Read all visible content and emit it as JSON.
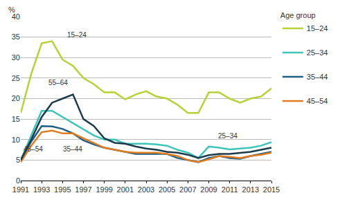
{
  "chart_data": {
    "type": "line",
    "ylabel": "%",
    "legend_title": "Age group",
    "legend": "right",
    "grid": true,
    "x": [
      1991,
      1992,
      1993,
      1994,
      1995,
      1996,
      1997,
      1998,
      1999,
      2000,
      2001,
      2002,
      2003,
      2004,
      2005,
      2006,
      2007,
      2008,
      2009,
      2010,
      2011,
      2012,
      2013,
      2014,
      2015
    ],
    "xlim": [
      1991,
      2015
    ],
    "xticks": [
      1991,
      1993,
      1995,
      1997,
      1999,
      2001,
      2003,
      2005,
      2007,
      2009,
      2011,
      2013,
      2015
    ],
    "ylim": [
      0,
      40
    ],
    "yticks": [
      0,
      5,
      10,
      15,
      20,
      25,
      30,
      35,
      40
    ],
    "series": [
      {
        "name": "15–24",
        "color": "#b5d334",
        "values": [
          16.5,
          26,
          33.5,
          34,
          29.5,
          28,
          25,
          23.5,
          21.5,
          21.5,
          19.8,
          21,
          21.8,
          20.5,
          20,
          18.5,
          16.5,
          16.5,
          21.5,
          21.5,
          20,
          19,
          20,
          20.5,
          22.5
        ]
      },
      {
        "name": "25–34",
        "color": "#3cc6b9",
        "values": [
          5,
          11,
          17,
          17,
          15.5,
          14,
          12.5,
          11,
          10,
          10,
          9,
          9,
          9,
          8.8,
          8.5,
          7.5,
          6.8,
          5.5,
          8.3,
          8,
          7.6,
          7.8,
          8,
          8.5,
          9.4
        ]
      },
      {
        "name": "35–44",
        "color": "#1e5f86",
        "values": [
          5,
          9.5,
          13.3,
          13.2,
          12.6,
          11.5,
          9.8,
          8.8,
          8,
          7.5,
          7,
          6.5,
          6.5,
          6.5,
          6.5,
          5.5,
          5,
          4.5,
          5.5,
          6,
          5.5,
          5.3,
          6,
          6.5,
          7
        ]
      },
      {
        "name": "45–54",
        "color": "#e07b1f",
        "values": [
          4.5,
          8.5,
          11.8,
          12.2,
          11.5,
          11.5,
          10.3,
          9.2,
          8,
          7.5,
          7,
          6.8,
          6.8,
          6.8,
          6.5,
          6,
          5,
          4.5,
          5.2,
          6,
          5.8,
          5.5,
          6,
          6.3,
          6.8
        ]
      },
      {
        "name": "55–64",
        "color": "#1b3a4b",
        "values": [
          5,
          10,
          15.5,
          19,
          20,
          21,
          15,
          13.3,
          10.3,
          9.2,
          9,
          8.3,
          7.8,
          7.5,
          7,
          6.8,
          6.3,
          5.5,
          6.2,
          6.5,
          6.5,
          6.7,
          7,
          7.5,
          8
        ]
      }
    ],
    "annotations": [
      "15–24",
      "55–64",
      "45–54",
      "35–44",
      "25–34"
    ]
  }
}
